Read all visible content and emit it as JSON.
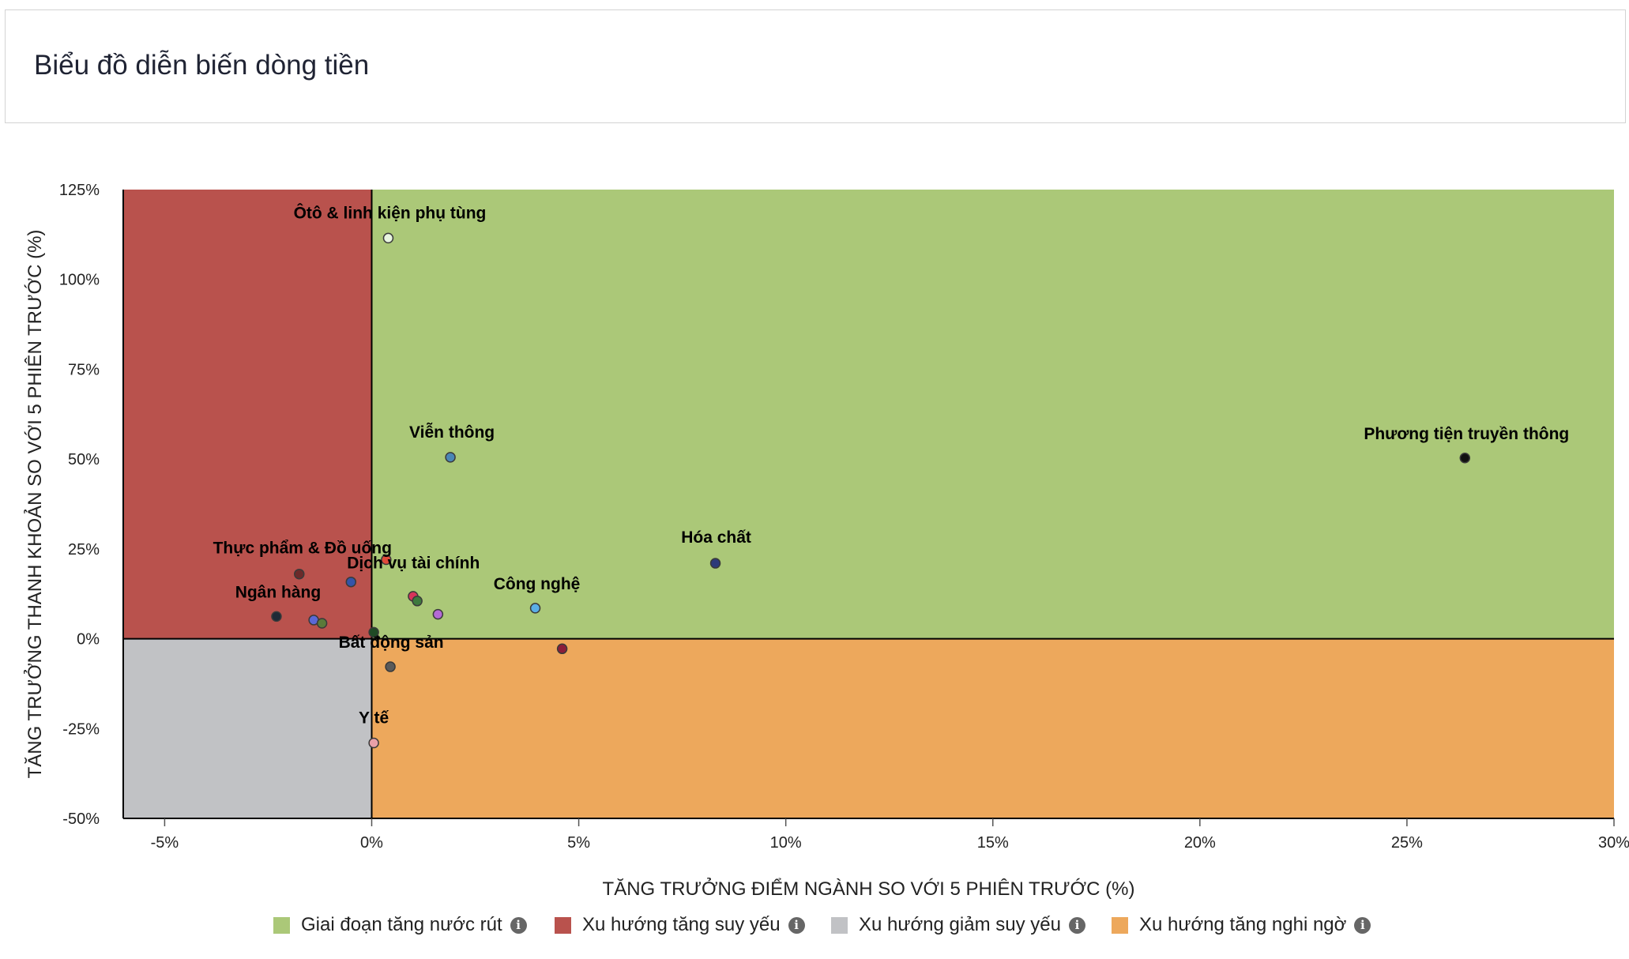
{
  "header": {
    "title": "Biểu đồ diễn biến dòng tiền"
  },
  "chart_data": {
    "type": "scatter",
    "title": "",
    "xlabel": "TĂNG TRƯỞNG ĐIỂM NGÀNH SO VỚI 5 PHIÊN TRƯỚC (%)",
    "ylabel": "TĂNG TRƯỞNG THANH KHOẢN SO VỚI 5 PHIÊN TRƯỚC (%)",
    "xlim": [
      -6,
      30
    ],
    "ylim": [
      -50,
      125
    ],
    "x_ticks": [
      -5,
      0,
      5,
      10,
      15,
      20,
      25,
      30
    ],
    "x_tick_labels": [
      "-5%",
      "0%",
      "5%",
      "10%",
      "15%",
      "20%",
      "25%",
      "30%"
    ],
    "y_ticks": [
      -50,
      -25,
      0,
      25,
      50,
      75,
      100,
      125
    ],
    "y_tick_labels": [
      "-50%",
      "-25%",
      "0%",
      "25%",
      "50%",
      "75%",
      "100%",
      "125%"
    ],
    "grid": false,
    "quadrants": [
      {
        "name": "Giai đoạn tăng nước rút",
        "color": "#abc878",
        "x_range": [
          0,
          30
        ],
        "y_range": [
          0,
          125
        ]
      },
      {
        "name": "Xu hướng tăng suy yếu",
        "color": "#b9524d",
        "x_range": [
          -6,
          0
        ],
        "y_range": [
          0,
          125
        ]
      },
      {
        "name": "Xu hướng giảm suy yếu",
        "color": "#c1c2c5",
        "x_range": [
          -6,
          0
        ],
        "y_range": [
          -50,
          0
        ]
      },
      {
        "name": "Xu hướng tăng nghi ngờ",
        "color": "#eda85c",
        "x_range": [
          0,
          30
        ],
        "y_range": [
          -50,
          0
        ]
      }
    ],
    "points": [
      {
        "x": 0.4,
        "y": 111.5,
        "color": "#e8f5e0",
        "label": "Ôtô & linh kiện phụ tùng"
      },
      {
        "x": 1.9,
        "y": 50.5,
        "color": "#4a86b5",
        "label": "Viễn thông"
      },
      {
        "x": 26.4,
        "y": 50.3,
        "color": "#111111",
        "label": "Phương tiện truyền thông"
      },
      {
        "x": 8.3,
        "y": 21.0,
        "color": "#2d3a7a",
        "label": "Hóa chất"
      },
      {
        "x": -1.75,
        "y": 18.0,
        "color": "#6b2a2a",
        "label": "Thực phẩm & Đồ uống"
      },
      {
        "x": 0.35,
        "y": 22.0,
        "color": "#e04a3a",
        "label": ""
      },
      {
        "x": -0.5,
        "y": 15.8,
        "color": "#3454a8",
        "label": "Dịch vụ tài chính"
      },
      {
        "x": 1.0,
        "y": 11.8,
        "color": "#d8335a",
        "label": ""
      },
      {
        "x": 1.1,
        "y": 10.5,
        "color": "#3d7a3d",
        "label": ""
      },
      {
        "x": 1.6,
        "y": 6.8,
        "color": "#b46ad6",
        "label": ""
      },
      {
        "x": 3.95,
        "y": 8.5,
        "color": "#5aaee6",
        "label": "Công nghệ"
      },
      {
        "x": -2.3,
        "y": 6.2,
        "color": "#1e2a36",
        "label": "Ngân hàng"
      },
      {
        "x": -1.4,
        "y": 5.2,
        "color": "#5b68d6",
        "label": ""
      },
      {
        "x": -1.2,
        "y": 4.3,
        "color": "#5a7a3a",
        "label": ""
      },
      {
        "x": 0.05,
        "y": 1.8,
        "color": "#1f4a25",
        "label": ""
      },
      {
        "x": 4.6,
        "y": -2.8,
        "color": "#8a1e3a",
        "label": ""
      },
      {
        "x": 0.45,
        "y": -7.8,
        "color": "#5a5a5a",
        "label": "Bất động sản"
      },
      {
        "x": 0.05,
        "y": -29.0,
        "color": "#e9a0a8",
        "label": "Y tế"
      }
    ]
  },
  "legend": [
    {
      "label": "Giai đoạn tăng nước rút",
      "color": "#abc878"
    },
    {
      "label": "Xu hướng tăng suy yếu",
      "color": "#b9524d"
    },
    {
      "label": "Xu hướng giảm suy yếu",
      "color": "#c1c2c5"
    },
    {
      "label": "Xu hướng tăng nghi ngờ",
      "color": "#eda85c"
    }
  ],
  "info_icon_glyph": "i"
}
